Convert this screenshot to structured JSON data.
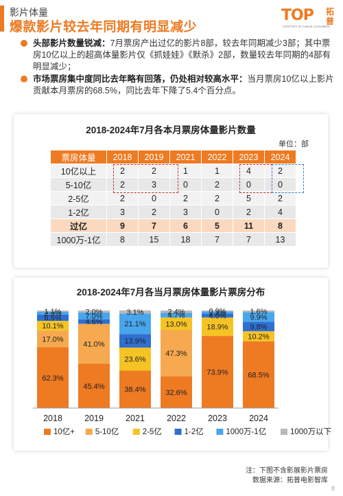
{
  "header": {
    "section": "影片体量",
    "title": "爆款影片较去年同期有明显减少"
  },
  "logo": {
    "mark": "TOP",
    "tagline": "CENTURY ⊕ Cultural Consultation",
    "cn_top": "拓",
    "cn_bottom": "普"
  },
  "bullets": [
    {
      "lead": "头部影片数量锐减：",
      "text": "7月票房产出过亿的影片8部，较去年同期减少3部；其中票房10亿以上的超高体量影片仅《抓娃娃》《默杀》2部，数量较去年同期的4部有明显减少；"
    },
    {
      "lead": "市场票房集中度同比去年略有回落，仍处相对较高水平：",
      "text": "当月票房10亿以上影片贡献本月票房的68.5%，同比去年下降了5.4个百分点。"
    }
  ],
  "table_chart": {
    "title": "2018-2024年7月各本月票房体量影片数量",
    "unit": "单位：部",
    "header_label": "票房体量",
    "years": [
      "2018",
      "2019",
      "2021",
      "2022",
      "2023",
      "2024"
    ],
    "rows": [
      {
        "label": "10亿以上",
        "values": [
          "2",
          "2",
          "1",
          "1",
          "4",
          "2"
        ]
      },
      {
        "label": "5-10亿",
        "values": [
          "2",
          "3",
          "0",
          "2",
          "0",
          "0"
        ]
      },
      {
        "label": "2-5亿",
        "values": [
          "2",
          "0",
          "2",
          "2",
          "5",
          "2"
        ]
      },
      {
        "label": "1-2亿",
        "values": [
          "3",
          "2",
          "3",
          "0",
          "2",
          "4"
        ]
      },
      {
        "label": "过亿",
        "values": [
          "9",
          "7",
          "6",
          "5",
          "11",
          "8"
        ]
      },
      {
        "label": "1000万-1亿",
        "values": [
          "8",
          "15",
          "18",
          "7",
          "7",
          "13"
        ]
      }
    ]
  },
  "chart_data": {
    "type": "bar",
    "stacked": true,
    "percent": true,
    "title": "2018-2024年7月各当月票房体量影片票房分布",
    "categories": [
      "2018",
      "2019",
      "2021",
      "2022",
      "2023",
      "2024"
    ],
    "series": [
      {
        "name": "10亿+",
        "color": "#ee7a22",
        "values": [
          62.3,
          45.4,
          38.4,
          32.6,
          73.9,
          68.5
        ]
      },
      {
        "name": "5-10亿",
        "color": "#f6a94f",
        "values": [
          17.0,
          41.0,
          0.0,
          47.3,
          0.0,
          0.0
        ]
      },
      {
        "name": "2-5亿",
        "color": "#f6c325",
        "values": [
          10.1,
          0.0,
          23.6,
          13.0,
          18.9,
          10.2
        ]
      },
      {
        "name": "1-2亿",
        "color": "#2f6fd0",
        "values": [
          6.5,
          4.6,
          13.9,
          0.0,
          4.0,
          9.8
        ]
      },
      {
        "name": "1000万-1亿",
        "color": "#48a6ec",
        "values": [
          2.9,
          7.0,
          21.1,
          4.7,
          2.3,
          9.9
        ]
      },
      {
        "name": "1000万以下",
        "color": "#b9b9b9",
        "values": [
          1.1,
          2.0,
          3.1,
          2.4,
          0.9,
          1.6
        ]
      }
    ],
    "ylim": [
      0,
      100
    ]
  },
  "footer": {
    "note": "注：下图不含影展影片票房",
    "source": "数据来源：拓普电影智库"
  },
  "page_number": "8"
}
